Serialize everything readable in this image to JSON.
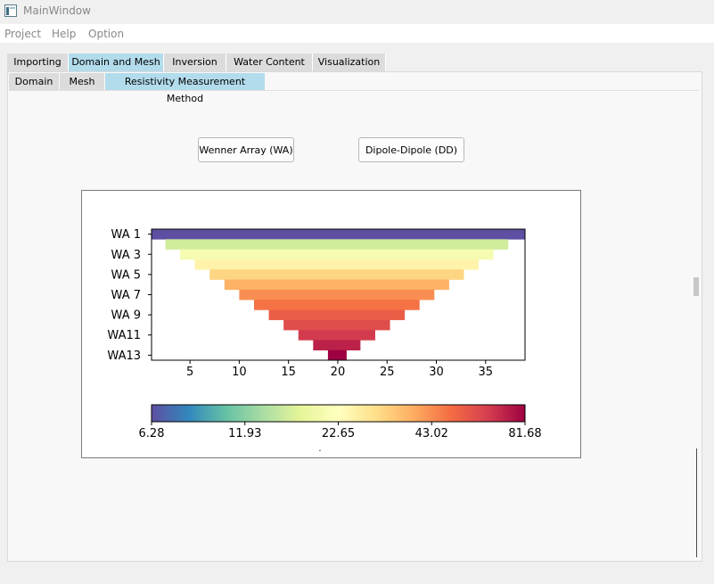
{
  "window": {
    "title": "MainWindow"
  },
  "menu": [
    "Project",
    "Help",
    "Option"
  ],
  "tabs": [
    "Importing",
    "Domain and Mesh",
    "Inversion",
    "Water Content",
    "Visualization"
  ],
  "active_tab": "Domain and Mesh",
  "subtabs": [
    "Domain",
    "Mesh",
    "Resistivity Measurement Method"
  ],
  "active_subtab": "Resistivity Measurement Method",
  "buttons": {
    "wenner": "Wenner Array (WA)",
    "dipole": "Dipole-Dipole (DD)"
  },
  "chart_data": {
    "type": "bar",
    "orientation": "horizontal",
    "y_tick_labels": [
      "WA 1",
      "WA 3",
      "WA 5",
      "WA 7",
      "WA 9",
      "WA11",
      "WA13"
    ],
    "x_ticks": [
      5,
      10,
      15,
      20,
      25,
      30,
      35
    ],
    "xlim": [
      1.1,
      39
    ],
    "levels": [
      {
        "level": 1,
        "start": 1.1,
        "end": 39.0,
        "value": 6.28
      },
      {
        "level": 2,
        "start": 2.5,
        "end": 37.3,
        "value": 15.9
      },
      {
        "level": 3,
        "start": 4.0,
        "end": 35.8,
        "value": 20.5
      },
      {
        "level": 4,
        "start": 5.5,
        "end": 34.3,
        "value": 25.0
      },
      {
        "level": 5,
        "start": 7.0,
        "end": 32.8,
        "value": 31.0
      },
      {
        "level": 6,
        "start": 8.5,
        "end": 31.3,
        "value": 37.0
      },
      {
        "level": 7,
        "start": 10.0,
        "end": 29.8,
        "value": 43.0
      },
      {
        "level": 8,
        "start": 11.5,
        "end": 28.3,
        "value": 48.0
      },
      {
        "level": 9,
        "start": 13.0,
        "end": 26.8,
        "value": 53.0
      },
      {
        "level": 10,
        "start": 14.5,
        "end": 25.3,
        "value": 58.0
      },
      {
        "level": 11,
        "start": 16.0,
        "end": 23.8,
        "value": 64.0
      },
      {
        "level": 12,
        "start": 17.5,
        "end": 22.3,
        "value": 71.0
      },
      {
        "level": 13,
        "start": 19.0,
        "end": 20.9,
        "value": 81.68
      }
    ],
    "colorbar": {
      "colormap": "Spectral_r",
      "scale": "log",
      "range": [
        6.28,
        81.68
      ],
      "tick_labels": [
        "6.28",
        "11.93",
        "22.65",
        "43.02",
        "81.68"
      ],
      "label": "."
    }
  }
}
